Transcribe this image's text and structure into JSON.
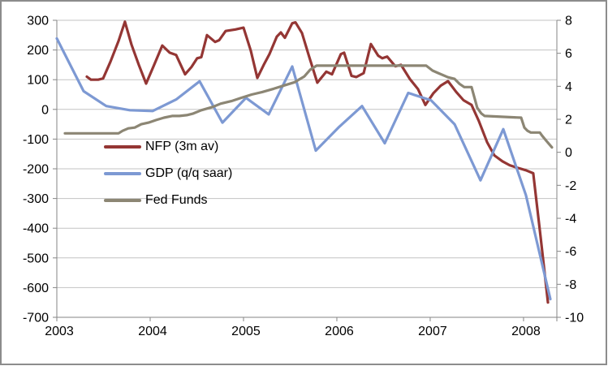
{
  "chart_data": {
    "type": "line",
    "title": "",
    "background": "#FFFFFF",
    "frame_color": "#8C8C8C",
    "grid": "horizontal",
    "gridline_color": "#C3C3C3",
    "axis_line_color": "#868686",
    "legend_position": "inside-left",
    "x_axis": {
      "min": 2003,
      "max": 2008.357,
      "tick_values": [
        2003,
        2004,
        2005,
        2006,
        2007,
        2008
      ],
      "tick_labels": [
        "2003",
        "2004",
        "2005",
        "2006",
        "2007",
        "2008"
      ]
    },
    "y_left": {
      "min": -700,
      "max": 300,
      "tick_values": [
        300,
        200,
        100,
        0,
        -100,
        -200,
        -300,
        -400,
        -500,
        -600,
        -700
      ],
      "tick_labels": [
        "300",
        "200",
        "100",
        "0",
        "-100",
        "-200",
        "-300",
        "-400",
        "-500",
        "-600",
        "-700"
      ]
    },
    "y_right": {
      "min": -10,
      "max": 8,
      "tick_values": [
        8,
        6,
        4,
        2,
        0,
        -2,
        -4,
        -6,
        -8,
        -10
      ],
      "tick_labels": [
        "8",
        "6",
        "4",
        "2",
        "0",
        "-2",
        "-4",
        "-6",
        "-8",
        "-10"
      ]
    },
    "series": [
      {
        "name": "NFP (3m av)",
        "id": "nfp-3m-av",
        "axis": "left",
        "color": "#943634",
        "points": [
          [
            2003.322,
            110
          ],
          [
            2003.365,
            100
          ],
          [
            2003.443,
            100
          ],
          [
            2003.496,
            104
          ],
          [
            2003.574,
            160
          ],
          [
            2003.661,
            230
          ],
          [
            2003.73,
            295
          ],
          [
            2003.8,
            218
          ],
          [
            2003.878,
            150
          ],
          [
            2003.957,
            87
          ],
          [
            2004.043,
            150
          ],
          [
            2004.13,
            215
          ],
          [
            2004.209,
            191
          ],
          [
            2004.278,
            183
          ],
          [
            2004.374,
            118
          ],
          [
            2004.443,
            143
          ],
          [
            2004.504,
            172
          ],
          [
            2004.548,
            176
          ],
          [
            2004.609,
            250
          ],
          [
            2004.696,
            227
          ],
          [
            2004.739,
            233
          ],
          [
            2004.809,
            264
          ],
          [
            2004.913,
            269
          ],
          [
            2005.0,
            275
          ],
          [
            2005.078,
            198
          ],
          [
            2005.148,
            106
          ],
          [
            2005.217,
            150
          ],
          [
            2005.278,
            186
          ],
          [
            2005.357,
            245
          ],
          [
            2005.4,
            259
          ],
          [
            2005.443,
            241
          ],
          [
            2005.522,
            290
          ],
          [
            2005.557,
            293
          ],
          [
            2005.626,
            257
          ],
          [
            2005.704,
            177
          ],
          [
            2005.791,
            90
          ],
          [
            2005.887,
            127
          ],
          [
            2005.948,
            118
          ],
          [
            2006.043,
            186
          ],
          [
            2006.078,
            191
          ],
          [
            2006.157,
            113
          ],
          [
            2006.209,
            109
          ],
          [
            2006.287,
            122
          ],
          [
            2006.365,
            220
          ],
          [
            2006.443,
            181
          ],
          [
            2006.487,
            172
          ],
          [
            2006.539,
            178
          ],
          [
            2006.626,
            145
          ],
          [
            2006.687,
            150
          ],
          [
            2006.783,
            102
          ],
          [
            2006.87,
            68
          ],
          [
            2006.948,
            15
          ],
          [
            2007.035,
            55
          ],
          [
            2007.113,
            80
          ],
          [
            2007.191,
            95
          ],
          [
            2007.278,
            59
          ],
          [
            2007.357,
            31
          ],
          [
            2007.443,
            15
          ],
          [
            2007.522,
            -40
          ],
          [
            2007.609,
            -110
          ],
          [
            2007.687,
            -155
          ],
          [
            2007.774,
            -175
          ],
          [
            2007.852,
            -188
          ],
          [
            2007.939,
            -197
          ],
          [
            2008.026,
            -205
          ],
          [
            2008.104,
            -215
          ],
          [
            2008.183,
            -430
          ],
          [
            2008.261,
            -650
          ]
        ]
      },
      {
        "name": "GDP (q/q saar)",
        "id": "gdp-qq-saar",
        "axis": "right",
        "color": "#7D99D3",
        "points": [
          [
            2003.0,
            6.9
          ],
          [
            2003.287,
            3.7
          ],
          [
            2003.53,
            2.8
          ],
          [
            2003.783,
            2.55
          ],
          [
            2004.026,
            2.5
          ],
          [
            2004.278,
            3.2
          ],
          [
            2004.53,
            4.3
          ],
          [
            2004.774,
            1.8
          ],
          [
            2005.026,
            3.3
          ],
          [
            2005.27,
            2.3
          ],
          [
            2005.522,
            5.2
          ],
          [
            2005.774,
            0.1
          ],
          [
            2006.017,
            1.5
          ],
          [
            2006.27,
            2.8
          ],
          [
            2006.513,
            0.55
          ],
          [
            2006.765,
            3.6
          ],
          [
            2007.009,
            3.15
          ],
          [
            2007.261,
            1.7
          ],
          [
            2007.539,
            -1.7
          ],
          [
            2007.783,
            1.4
          ],
          [
            2008.026,
            -2.6
          ],
          [
            2008.287,
            -8.9
          ]
        ]
      },
      {
        "name": "Fed Funds",
        "id": "fed-funds",
        "axis": "right",
        "color": "#8C8674",
        "points": [
          [
            2003.087,
            1.15
          ],
          [
            2003.661,
            1.15
          ],
          [
            2003.704,
            1.3
          ],
          [
            2003.765,
            1.45
          ],
          [
            2003.835,
            1.5
          ],
          [
            2003.904,
            1.7
          ],
          [
            2003.983,
            1.8
          ],
          [
            2004.061,
            1.95
          ],
          [
            2004.148,
            2.1
          ],
          [
            2004.235,
            2.2
          ],
          [
            2004.313,
            2.2
          ],
          [
            2004.391,
            2.25
          ],
          [
            2004.461,
            2.35
          ],
          [
            2004.548,
            2.55
          ],
          [
            2004.67,
            2.75
          ],
          [
            2004.757,
            2.95
          ],
          [
            2004.87,
            3.1
          ],
          [
            2004.974,
            3.3
          ],
          [
            2005.087,
            3.5
          ],
          [
            2005.2,
            3.65
          ],
          [
            2005.322,
            3.85
          ],
          [
            2005.435,
            4.05
          ],
          [
            2005.548,
            4.25
          ],
          [
            2005.652,
            4.6
          ],
          [
            2005.713,
            5.0
          ],
          [
            2005.783,
            5.25
          ],
          [
            2006.957,
            5.25
          ],
          [
            2007.026,
            4.95
          ],
          [
            2007.087,
            4.8
          ],
          [
            2007.191,
            4.55
          ],
          [
            2007.261,
            4.45
          ],
          [
            2007.313,
            4.15
          ],
          [
            2007.365,
            3.95
          ],
          [
            2007.443,
            3.95
          ],
          [
            2007.504,
            2.7
          ],
          [
            2007.548,
            2.35
          ],
          [
            2007.583,
            2.2
          ],
          [
            2007.974,
            2.1
          ],
          [
            2008.009,
            1.5
          ],
          [
            2008.043,
            1.3
          ],
          [
            2008.078,
            1.2
          ],
          [
            2008.174,
            1.2
          ],
          [
            2008.2,
            1.0
          ],
          [
            2008.243,
            0.7
          ],
          [
            2008.304,
            0.3
          ]
        ]
      }
    ]
  }
}
